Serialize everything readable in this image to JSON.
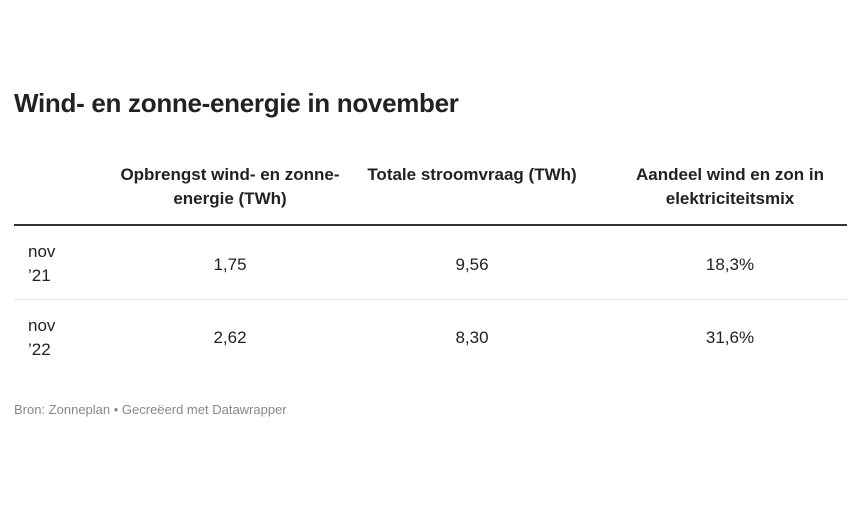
{
  "header": {
    "title": "Wind- en zonne-energie in november"
  },
  "table": {
    "columns": [
      "Opbrengst wind- en zonne-energie (TWh)",
      "Totale stroomvraag (TWh)",
      "Aandeel wind en zon in elektriciteitsmix"
    ],
    "rows": [
      [
        "nov ’21",
        "1,75",
        "9,56",
        "18,3%"
      ],
      [
        "nov ’22",
        "2,62",
        "8,30",
        "31,6%"
      ]
    ]
  },
  "footer": {
    "source": "Bron: Zonneplan • Gecreëerd met Datawrapper"
  }
}
